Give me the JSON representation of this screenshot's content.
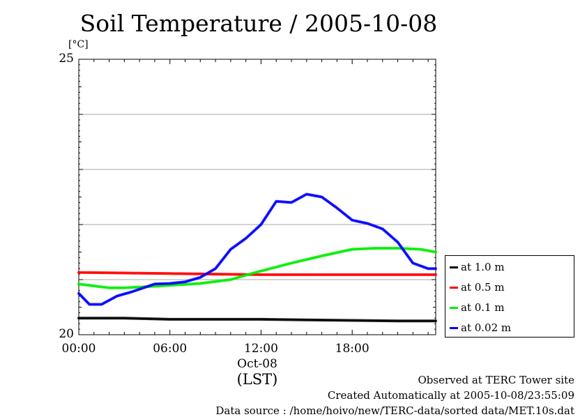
{
  "chart_data": {
    "type": "line",
    "title": "Soil Temperature / 2005-10-08",
    "ylabel": "[°C]",
    "ylim": [
      20,
      25
    ],
    "yticks": [
      {
        "value": 20,
        "label": "20"
      },
      {
        "value": 25,
        "label": "25"
      }
    ],
    "xlim": [
      0,
      23.5
    ],
    "xticks": [
      {
        "value": 0,
        "label": "00:00"
      },
      {
        "value": 6,
        "label": "06:00"
      },
      {
        "value": 12,
        "label": "12:00"
      },
      {
        "value": 18,
        "label": "18:00"
      }
    ],
    "date_label": "Oct-08",
    "time_zone_label": "(LST)",
    "grid": true,
    "legend": "right",
    "series": [
      {
        "name": "at 1.0 m",
        "color": "#000000",
        "x": [
          0,
          3,
          6,
          9,
          12,
          15,
          18,
          21,
          23.5
        ],
        "y": [
          20.3,
          20.3,
          20.28,
          20.28,
          20.28,
          20.27,
          20.26,
          20.25,
          20.25
        ]
      },
      {
        "name": "at 0.5 m",
        "color": "#ff0000",
        "x": [
          0,
          3,
          6,
          9,
          12,
          15,
          18,
          21,
          23.5
        ],
        "y": [
          21.13,
          21.12,
          21.11,
          21.1,
          21.09,
          21.09,
          21.09,
          21.09,
          21.09
        ]
      },
      {
        "name": "at 0.1 m",
        "color": "#00ee00",
        "x": [
          0,
          2,
          3,
          5,
          8,
          10,
          11.5,
          14,
          16,
          18,
          19.5,
          21,
          22.5,
          23.5
        ],
        "y": [
          20.92,
          20.85,
          20.85,
          20.88,
          20.93,
          21.0,
          21.12,
          21.3,
          21.43,
          21.55,
          21.57,
          21.57,
          21.55,
          21.5
        ]
      },
      {
        "name": "at 0.02 m",
        "color": "#0000ff",
        "x": [
          0,
          0.7,
          1.5,
          2.5,
          3.5,
          5,
          6,
          7,
          8,
          9,
          10,
          11,
          12,
          13,
          14,
          15,
          16,
          17,
          18,
          19,
          20,
          21,
          22,
          23,
          23.5
        ],
        "y": [
          20.75,
          20.55,
          20.55,
          20.7,
          20.78,
          20.92,
          20.93,
          20.96,
          21.04,
          21.2,
          21.55,
          21.75,
          22.0,
          22.42,
          22.4,
          22.55,
          22.5,
          22.3,
          22.08,
          22.02,
          21.92,
          21.68,
          21.3,
          21.2,
          21.2
        ]
      }
    ]
  },
  "footer": {
    "site": "Observed at TERC Tower site",
    "created": "Created Automatically at 2005-10-08/23:55:09",
    "source": "Data source : /home/hoivo/new/TERC-data/sorted  data/MET.10s.dat"
  }
}
